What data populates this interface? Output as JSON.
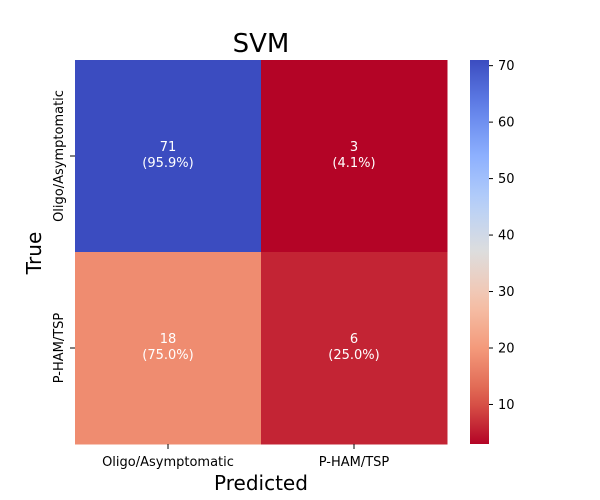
{
  "chart_data": {
    "type": "heatmap",
    "title": "SVM",
    "xlabel": "Predicted",
    "ylabel": "True",
    "x_categories": [
      "Oligo/Asymptomatic",
      "P-HAM/TSP"
    ],
    "y_categories": [
      "Oligo/Asymptomatic",
      "P-HAM/TSP"
    ],
    "values": [
      [
        71,
        3
      ],
      [
        18,
        6
      ]
    ],
    "cell_labels": [
      [
        {
          "count": "71",
          "pct": "(95.9%)"
        },
        {
          "count": "3",
          "pct": "(4.1%)"
        }
      ],
      [
        {
          "count": "18",
          "pct": "(75.0%)"
        },
        {
          "count": "6",
          "pct": "(25.0%)"
        }
      ]
    ],
    "colorbar": {
      "colormap": "coolwarm_r",
      "vmin": 3,
      "vmax": 71,
      "ticks": [
        10,
        20,
        30,
        40,
        50,
        60,
        70
      ]
    }
  }
}
